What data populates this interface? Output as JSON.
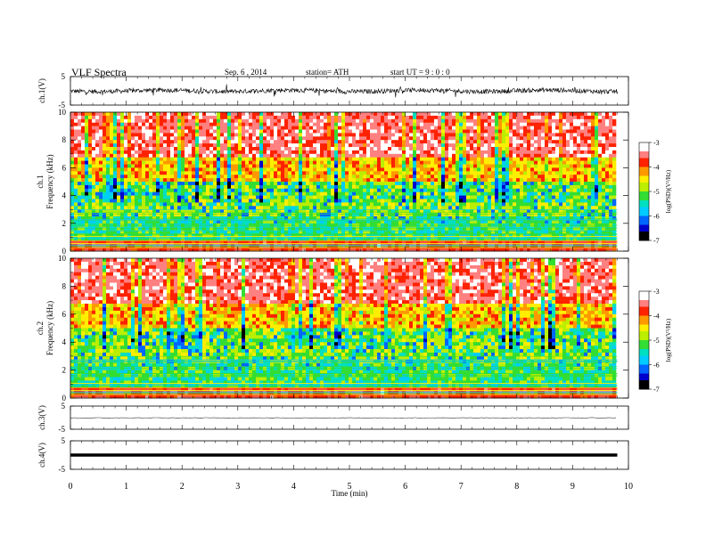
{
  "header": {
    "title": "VLF  Spectra",
    "date": "Sep. 6  , 2014",
    "station": "station= ATH",
    "start": "start  UT  =   9  : 0  : 0"
  },
  "chart_data": [
    {
      "type": "line",
      "panel": "ch1-waveform",
      "ylabel": "ch.1(V)",
      "ylim": [
        -5,
        5
      ],
      "yticks": [
        "5",
        "-5"
      ],
      "xlim": [
        0,
        10
      ],
      "signal": "noisy waveform, amplitude about ±1 V around 0"
    },
    {
      "type": "heatmap",
      "panel": "ch1-spectrogram",
      "ylabel": "ch.1\nFrequency  (kHz)",
      "ylim": [
        0,
        10
      ],
      "yticks": [
        "0",
        "2",
        "4",
        "6",
        "8",
        "10"
      ],
      "xlim": [
        0,
        9.8
      ],
      "colorbar": {
        "label": "log(PSD)(V²/Hz)",
        "range": [
          -7,
          -3
        ],
        "ticks": [
          "-3",
          "-4",
          "-5",
          "-6",
          "-7"
        ]
      },
      "bands": [
        {
          "from_khz": 0,
          "to_khz": 0.7,
          "level": "layered red/orange/green lines"
        },
        {
          "from_khz": 0.7,
          "to_khz": 2.5,
          "level": "cyan/green horizontal striations"
        },
        {
          "from_khz": 2.5,
          "to_khz": 5,
          "level": "green/cyan with blue patches"
        },
        {
          "from_khz": 5,
          "to_khz": 7,
          "level": "yellow/green transition"
        },
        {
          "from_khz": 7,
          "to_khz": 10,
          "level": "red with yellow/green vertical spikes"
        }
      ]
    },
    {
      "type": "heatmap",
      "panel": "ch2-spectrogram",
      "ylabel": "ch.2\nFrequency  (kHz)",
      "ylim": [
        0,
        10
      ],
      "yticks": [
        "0",
        "2",
        "4",
        "6",
        "8",
        "10"
      ],
      "xlim": [
        0,
        9.8
      ],
      "colorbar": {
        "label": "log(PSD)(V²/Hz)",
        "range": [
          -7,
          -3
        ],
        "ticks": [
          "-3",
          "-4",
          "-5",
          "-6",
          "-7"
        ]
      },
      "bands": [
        {
          "from_khz": 0,
          "to_khz": 1.2,
          "level": "layered red/orange/green lines"
        },
        {
          "from_khz": 1.2,
          "to_khz": 3.5,
          "level": "green/cyan horizontal striations"
        },
        {
          "from_khz": 3.5,
          "to_khz": 6,
          "level": "green/yellow with cyan patches"
        },
        {
          "from_khz": 6,
          "to_khz": 10,
          "level": "red/yellow with green vertical spikes"
        }
      ]
    },
    {
      "type": "line",
      "panel": "ch3-waveform",
      "ylabel": "ch.3(V)",
      "ylim": [
        -5,
        5
      ],
      "yticks": [
        "5",
        "-5"
      ],
      "xlim": [
        0,
        9.8
      ],
      "signal": "flat near 0 V"
    },
    {
      "type": "line",
      "panel": "ch4-waveform",
      "ylabel": "ch.4(V)",
      "ylim": [
        -5,
        5
      ],
      "yticks": [
        "5",
        "-5"
      ],
      "xlim": [
        0,
        9.8
      ],
      "signal": "thick flat trace near 0 V"
    }
  ],
  "xaxis": {
    "label": "Time  (min)",
    "ticks": [
      "0",
      "1",
      "2",
      "3",
      "4",
      "5",
      "6",
      "7",
      "8",
      "9",
      "10"
    ],
    "range": [
      0,
      10
    ]
  },
  "colors": {
    "scale": [
      "#000000",
      "#0000cc",
      "#0066ff",
      "#00ccff",
      "#00e0c0",
      "#33dd33",
      "#bbee00",
      "#ffee00",
      "#ff9900",
      "#ff2200",
      "#ff8080",
      "#ffffff"
    ]
  }
}
